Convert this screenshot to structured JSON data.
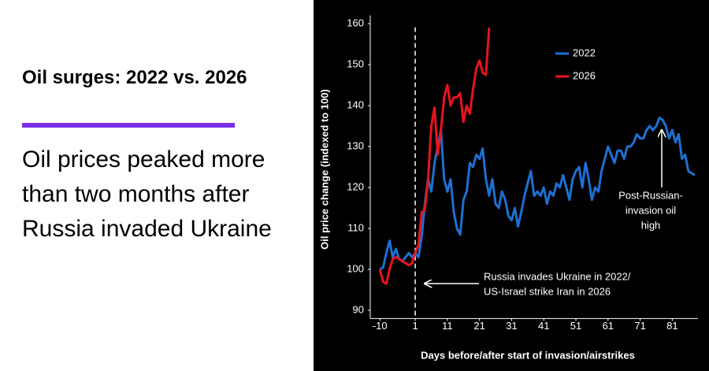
{
  "header": {
    "title": "Oil surges: 2022 vs. 2026",
    "subtitle": "Oil prices peaked more than two months after Russia invaded Ukraine"
  },
  "chart_data": {
    "type": "line",
    "x_label": "Days before/after start of invasion/airstrikes",
    "y_label": "Oil price change (indexed to 100)",
    "xlim": [
      -13,
      89
    ],
    "xticks": [
      -10,
      1,
      11,
      21,
      31,
      41,
      51,
      61,
      71,
      81
    ],
    "ylim": [
      88,
      162
    ],
    "yticks": [
      90,
      100,
      110,
      120,
      130,
      140,
      150,
      160
    ],
    "grid": false,
    "legend": "top",
    "series": [
      {
        "name": "2022",
        "color": "#1f6fd1",
        "x": [
          -10,
          -9,
          -8,
          -7,
          -6,
          -5,
          -4,
          -3,
          -2,
          -1,
          0,
          1,
          2,
          3,
          4,
          5,
          6,
          7,
          8,
          9,
          10,
          11,
          12,
          13,
          14,
          15,
          16,
          17,
          18,
          19,
          20,
          21,
          22,
          23,
          24,
          25,
          26,
          27,
          28,
          29,
          30,
          31,
          32,
          33,
          34,
          35,
          36,
          37,
          38,
          39,
          40,
          41,
          42,
          43,
          44,
          45,
          46,
          47,
          48,
          49,
          50,
          51,
          52,
          53,
          54,
          55,
          56,
          57,
          58,
          59,
          60,
          61,
          62,
          63,
          64,
          65,
          66,
          67,
          68,
          69,
          70,
          71,
          72,
          73,
          74,
          75,
          76,
          77,
          78,
          79,
          80,
          81,
          82,
          83,
          84,
          85,
          86,
          87,
          88
        ],
        "values": [
          100,
          100.5,
          104,
          107,
          103,
          105,
          102.5,
          102,
          103,
          104,
          103,
          104,
          103,
          108,
          116,
          122,
          119,
          126,
          130,
          134,
          122,
          119,
          122,
          114,
          110,
          108.5,
          117,
          119,
          126,
          125,
          128,
          127,
          129.5,
          122,
          118,
          122,
          116,
          115,
          119,
          117,
          113,
          112,
          115,
          110.5,
          114,
          118,
          121,
          124,
          118,
          119,
          118,
          120,
          116,
          119,
          118,
          121,
          120,
          123,
          120,
          117,
          122,
          124,
          125,
          120,
          126,
          122,
          117,
          120,
          119,
          124,
          127,
          130,
          128,
          126,
          129,
          129,
          127,
          130,
          130,
          131,
          133,
          132,
          132,
          134,
          135,
          134,
          135,
          137,
          136.5,
          135,
          132,
          134,
          131,
          133,
          127,
          128,
          124,
          123.5,
          123
        ]
      },
      {
        "name": "2026",
        "color": "#e8141c",
        "x": [
          -10,
          -9,
          -8,
          -7,
          -6,
          -5,
          -4,
          -3,
          -2,
          -1,
          0,
          1,
          2,
          3,
          4,
          5,
          6,
          7,
          8,
          9,
          10,
          11,
          12,
          13,
          14,
          15,
          16,
          17,
          18,
          19,
          20,
          21,
          22,
          23,
          24
        ],
        "values": [
          100,
          97,
          96.5,
          100,
          102.5,
          103,
          102.5,
          102,
          101.5,
          101,
          101.5,
          104,
          106,
          114,
          114.5,
          122,
          135,
          139.5,
          128,
          134,
          142,
          145,
          140,
          142,
          142,
          143,
          136,
          140,
          138,
          144,
          149,
          151,
          148,
          147.5,
          159
        ]
      }
    ],
    "event_line": {
      "x": 1,
      "label": [
        "Russia invades Ukraine in 2022/",
        "US-Israel strike Iran in 2026"
      ]
    },
    "peak_note": {
      "label": [
        "Post-Russian-",
        "invasion oil",
        "high"
      ]
    }
  }
}
